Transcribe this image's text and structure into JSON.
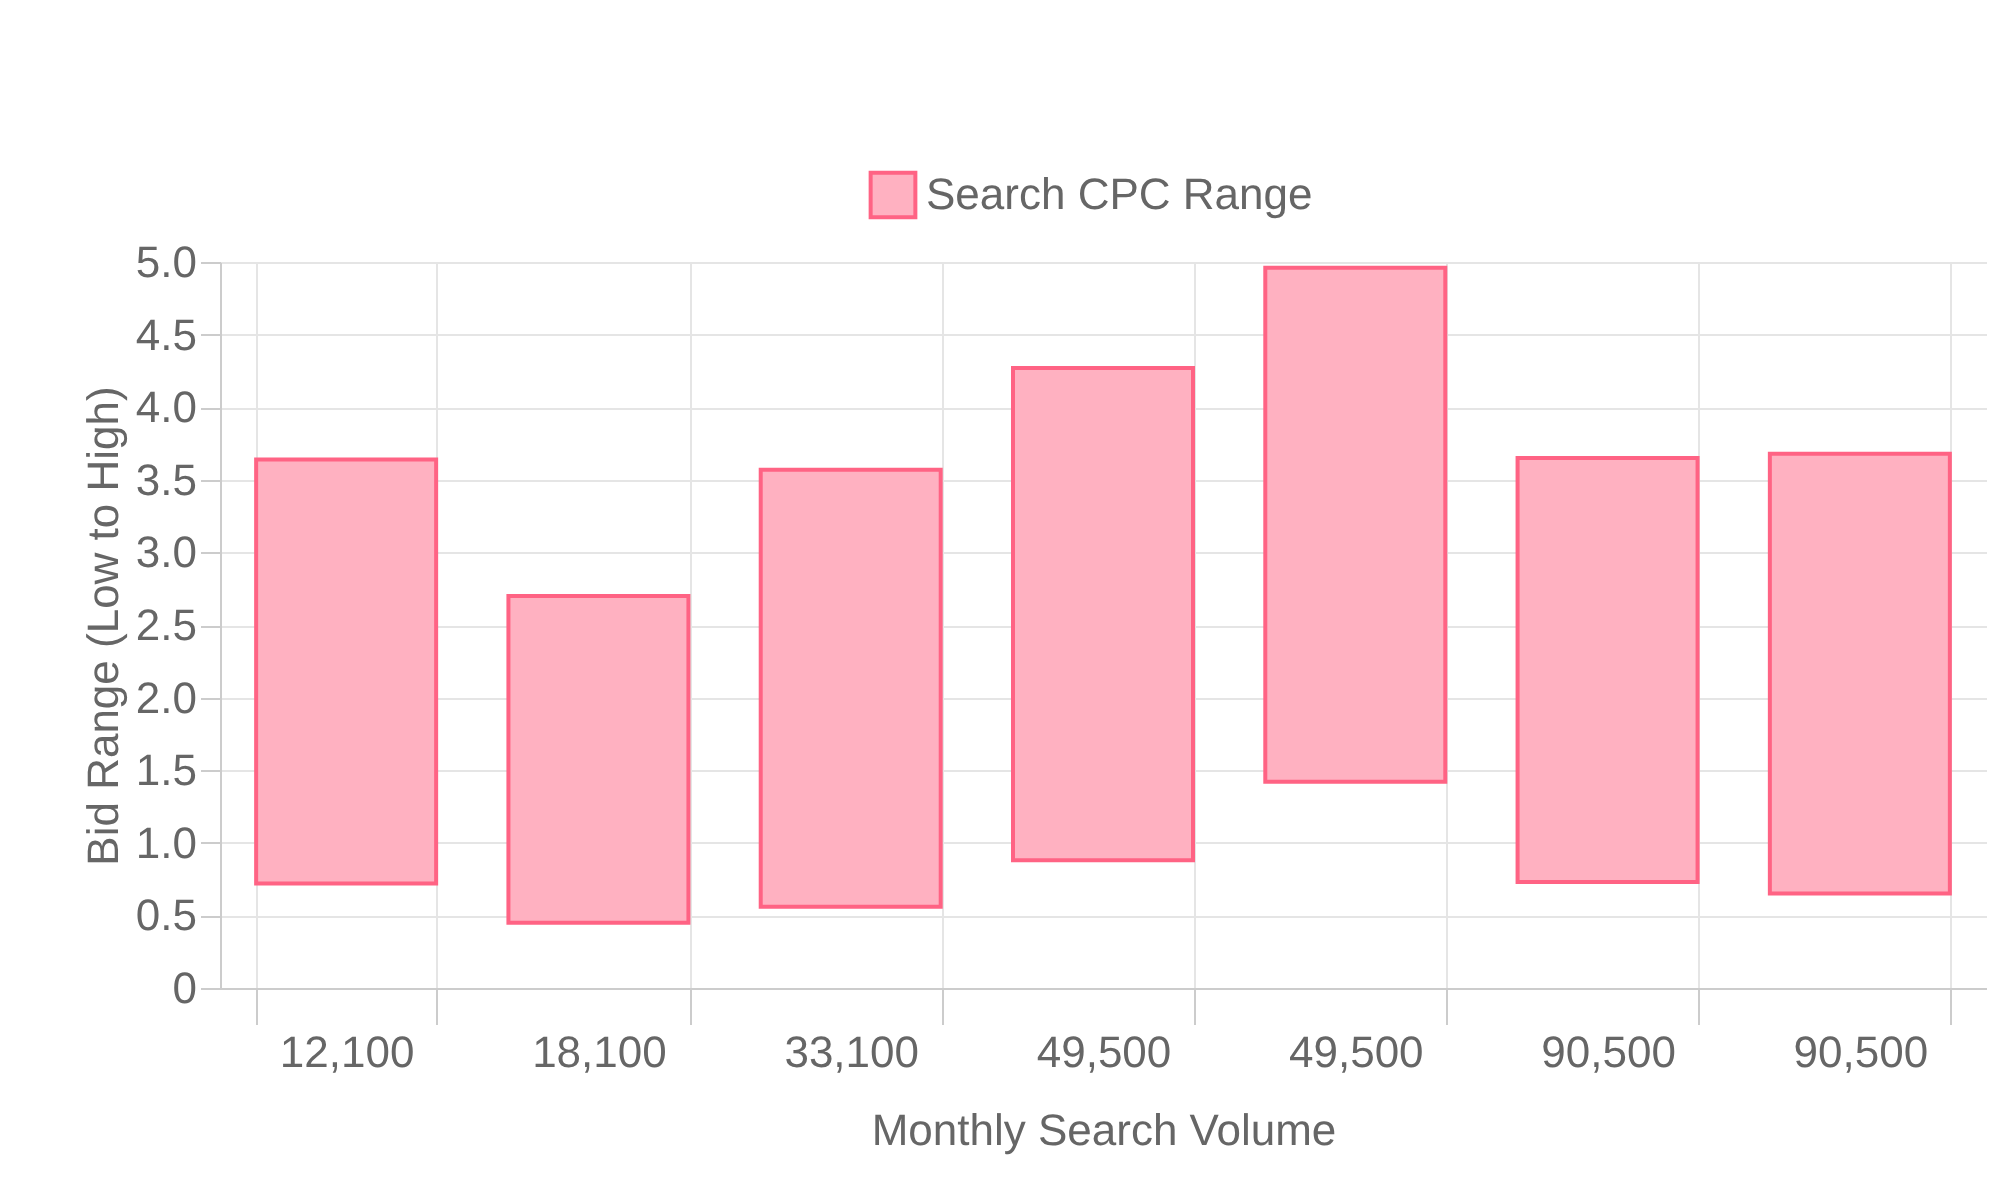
{
  "chart_data": {
    "type": "bar",
    "xlabel": "Monthly Search Volume",
    "ylabel": "Bid Range (Low to High)",
    "categories": [
      "12,100",
      "18,100",
      "33,100",
      "49,500",
      "49,500",
      "90,500",
      "90,500"
    ],
    "series": [
      {
        "name": "Search CPC Range",
        "color": "#ffb1c1",
        "values": [
          2.92,
          2.25,
          3.01,
          3.39,
          3.54,
          2.92,
          3.03
        ],
        "base": [
          0.72,
          0.45,
          0.56,
          0.88,
          1.42,
          0.73,
          0.65
        ]
      }
    ],
    "ylim": [
      0,
      5
    ],
    "yticks": [
      0,
      0.5,
      {
        "value": 1,
        "label": "1.0"
      },
      1.5,
      {
        "value": 2,
        "label": "2.0"
      },
      2.5,
      {
        "value": 3,
        "label": "3.0"
      },
      3.5,
      {
        "value": 4,
        "label": "4.0"
      },
      4.5,
      {
        "value": 5,
        "label": "5.0"
      }
    ],
    "grid": true,
    "legend": "top"
  }
}
